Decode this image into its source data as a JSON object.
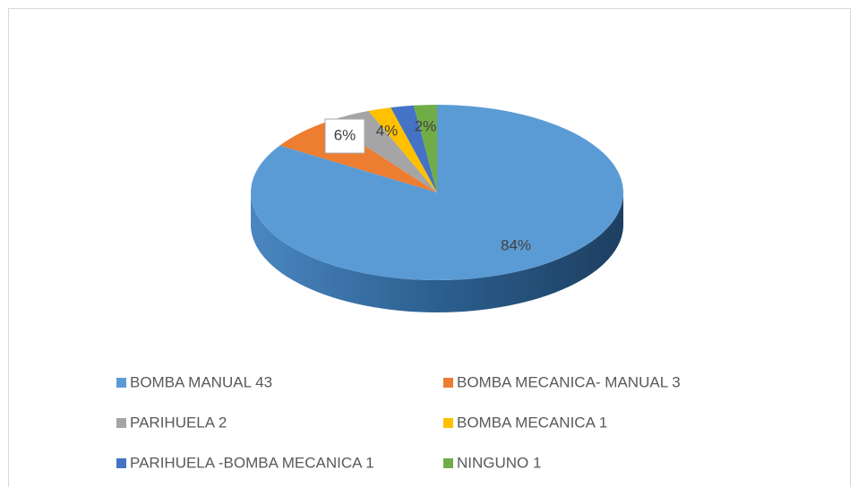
{
  "chart_data": {
    "type": "pie",
    "categories": [
      "BOMBA MANUAL  43",
      "BOMBA MECANICA- MANUAL  3",
      "PARIHUELA 2",
      "BOMBA MECANICA  1",
      "PARIHUELA -BOMBA MECANICA  1",
      "NINGUNO  1"
    ],
    "values": [
      84,
      6,
      4,
      2,
      2,
      2
    ],
    "value_labels": [
      "84%",
      "6%",
      "4%",
      null,
      null,
      "2%"
    ],
    "colors": [
      "#5b9bd5",
      "#ed7d31",
      "#a5a5a5",
      "#ffc000",
      "#4472c4",
      "#70ad47"
    ],
    "legend": "bottom"
  }
}
